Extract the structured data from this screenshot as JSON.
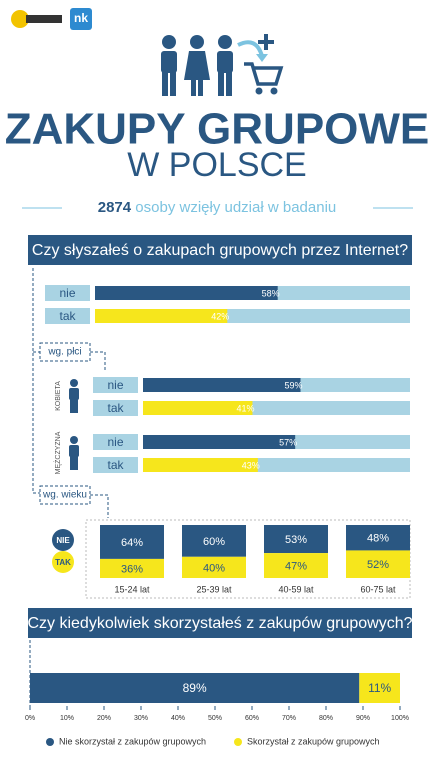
{
  "header": {
    "logo": "nk",
    "title": "ZAKUPY GRUPOWE",
    "subtitle": "W POLSCE",
    "respondents": 2874,
    "respondents_text": "osoby wzięły udział w badaniu"
  },
  "chart_data": [
    {
      "type": "bar",
      "orientation": "horizontal",
      "title": "Czy słyszałeś o zakupach grupowych przez Internet?",
      "categories": [
        "nie",
        "tak"
      ],
      "values": [
        58,
        42
      ],
      "value_labels": [
        "58%",
        "42%"
      ],
      "colors": [
        "#2a5782",
        "#f6e61c"
      ],
      "xlim": [
        0,
        100
      ]
    },
    {
      "type": "bar",
      "orientation": "horizontal",
      "group_label": "wg. płci",
      "label": "KOBIETA",
      "categories": [
        "nie",
        "tak"
      ],
      "values": [
        59,
        41
      ],
      "value_labels": [
        "59%",
        "41%"
      ],
      "colors": [
        "#2a5782",
        "#f6e61c"
      ],
      "xlim": [
        0,
        100
      ]
    },
    {
      "type": "bar",
      "orientation": "horizontal",
      "label": "MĘŻCZYZNA",
      "categories": [
        "nie",
        "tak"
      ],
      "values": [
        57,
        43
      ],
      "value_labels": [
        "57%",
        "43%"
      ],
      "colors": [
        "#2a5782",
        "#f6e61c"
      ],
      "xlim": [
        0,
        100
      ]
    },
    {
      "type": "stacked_column",
      "group_label": "wg. wieku",
      "categories": [
        "15-24 lat",
        "25-39 lat",
        "40-59 lat",
        "60-75 lat"
      ],
      "ylim": [
        0,
        100
      ],
      "series": [
        {
          "name": "NIE",
          "color": "#2a5782",
          "values": [
            64,
            60,
            53,
            48
          ],
          "value_labels": [
            "64%",
            "60%",
            "53%",
            "48%"
          ]
        },
        {
          "name": "TAK",
          "color": "#f6e61c",
          "values": [
            36,
            40,
            47,
            52
          ],
          "value_labels": [
            "36%",
            "40%",
            "47%",
            "52%"
          ]
        }
      ]
    },
    {
      "type": "stacked_bar",
      "title": "Czy kiedykolwiek skorzystałeś z zakupów grupowych?",
      "xlim": [
        0,
        100
      ],
      "xticks": [
        {
          "value": 0,
          "label": "0%"
        },
        {
          "value": 10,
          "label": "10%"
        },
        {
          "value": 20,
          "label": "20%"
        },
        {
          "value": 30,
          "label": "30%"
        },
        {
          "value": 40,
          "label": "40%"
        },
        {
          "value": 50,
          "label": "50%"
        },
        {
          "value": 60,
          "label": "60%"
        },
        {
          "value": 70,
          "label": "70%"
        },
        {
          "value": 80,
          "label": "80%"
        },
        {
          "value": 90,
          "label": "90%"
        },
        {
          "value": 100,
          "label": "100%"
        }
      ],
      "series": [
        {
          "name": "Nie skorzystał z zakupów grupowych",
          "color": "#2a5782",
          "values": [
            89
          ],
          "value_labels": [
            "89%"
          ]
        },
        {
          "name": "Skorzystał z zakupów grupowych",
          "color": "#f6e61c",
          "values": [
            11
          ],
          "value_labels": [
            "11%"
          ]
        }
      ]
    }
  ]
}
